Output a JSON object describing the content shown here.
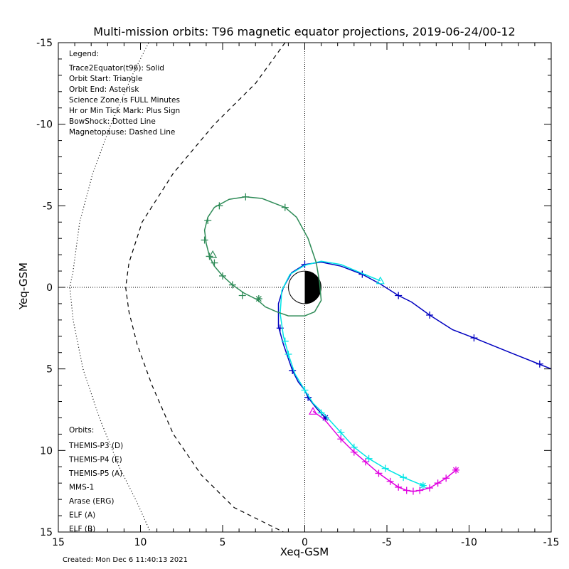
{
  "chart_data": {
    "type": "line",
    "title": "Multi-mission orbits: T96 magnetic equator projections, 2019-06-24/00-12",
    "xlabel": "Xeq-GSM",
    "ylabel": "Yeq-GSM",
    "xlim": [
      15,
      -15
    ],
    "ylim": [
      -15,
      15
    ],
    "x_ticks": [
      {
        "v": 15,
        "label": "15"
      },
      {
        "v": 10,
        "label": "10"
      },
      {
        "v": 5,
        "label": "5"
      },
      {
        "v": 0,
        "label": "0"
      },
      {
        "v": -5,
        "label": "-5"
      },
      {
        "v": -10,
        "label": "-10"
      },
      {
        "v": -15,
        "label": "-15"
      }
    ],
    "y_ticks": [
      {
        "v": -15,
        "label": "-15"
      },
      {
        "v": -10,
        "label": "-10"
      },
      {
        "v": -5,
        "label": "-5"
      },
      {
        "v": 0,
        "label": "0"
      },
      {
        "v": 5,
        "label": "5"
      },
      {
        "v": 10,
        "label": "10"
      },
      {
        "v": 15,
        "label": "15"
      }
    ],
    "created": "Created: Mon Dec  6 11:40:13 2021",
    "legend": {
      "header": "Legend:",
      "lines": [
        "Trace2Equator(t96): Solid",
        "Orbit Start: Triangle",
        "Orbit End: Asterisk",
        "Science Zone is FULL Minutes",
        "Hr or Min Tick Mark: Plus Sign",
        "BowShock: Dotted Line",
        "Magnetopause: Dashed Line"
      ]
    },
    "orbits_header": "Orbits:",
    "orbit_legend": [
      {
        "label": "THEMIS-P3 (D)",
        "color": "#00e5e5"
      },
      {
        "label": "THEMIS-P4 (E)",
        "color": "#0000c0"
      },
      {
        "label": "THEMIS-P5 (A)",
        "color": "#e000e0"
      },
      {
        "label": "MMS-1",
        "color": "#000000"
      },
      {
        "label": "Arase (ERG)",
        "color": "#2e8b57"
      },
      {
        "label": "ELF (A)",
        "color": "#3c78dc"
      },
      {
        "label": "ELF (B)",
        "color": "#dc1e1e"
      }
    ],
    "boundaries": {
      "bowshock": [
        [
          9.2,
          -15.6
        ],
        [
          10.5,
          -13
        ],
        [
          11.8,
          -10
        ],
        [
          12.9,
          -7
        ],
        [
          13.7,
          -4
        ],
        [
          14.1,
          -1
        ],
        [
          14.3,
          0
        ],
        [
          14.1,
          2
        ],
        [
          13.5,
          5
        ],
        [
          12.5,
          8
        ],
        [
          11.3,
          11
        ],
        [
          10.3,
          13
        ],
        [
          9.4,
          15
        ]
      ],
      "magnetopause": [
        [
          1.2,
          -15
        ],
        [
          3.0,
          -12.5
        ],
        [
          5.5,
          -10
        ],
        [
          8.0,
          -7
        ],
        [
          9.9,
          -4
        ],
        [
          10.7,
          -1.5
        ],
        [
          10.9,
          0
        ],
        [
          10.7,
          1.5
        ],
        [
          10.2,
          3.5
        ],
        [
          9.3,
          6
        ],
        [
          8.0,
          9
        ],
        [
          6.3,
          11.5
        ],
        [
          4.3,
          13.5
        ],
        [
          1.3,
          15
        ]
      ]
    },
    "series": [
      {
        "name": "THEMIS-P4 (E)",
        "color": "#0000c0",
        "points": [
          [
            -15.0,
            5.0
          ],
          [
            -14.0,
            4.6
          ],
          [
            -12.5,
            4.0
          ],
          [
            -10.3,
            3.1
          ],
          [
            -9.0,
            2.6
          ],
          [
            -7.6,
            1.7
          ],
          [
            -6.5,
            0.9
          ],
          [
            -5.7,
            0.5
          ],
          [
            -4.6,
            -0.2
          ],
          [
            -3.5,
            -0.8
          ],
          [
            -2.2,
            -1.3
          ],
          [
            -1.0,
            -1.55
          ],
          [
            0.0,
            -1.4
          ],
          [
            0.8,
            -0.9
          ],
          [
            1.3,
            0.0
          ],
          [
            1.6,
            1.0
          ],
          [
            1.6,
            2.4
          ],
          [
            1.3,
            3.5
          ],
          [
            0.75,
            5.1
          ],
          [
            0.4,
            5.8
          ],
          [
            0.0,
            6.3
          ],
          [
            -0.2,
            6.75
          ],
          [
            -0.7,
            7.4
          ],
          [
            -1.25,
            8.0
          ]
        ],
        "ticks": [
          [
            -14.3,
            4.7
          ],
          [
            -10.3,
            3.1
          ],
          [
            -7.6,
            1.7
          ],
          [
            -5.7,
            0.5
          ],
          [
            -3.5,
            -0.8
          ],
          [
            0.0,
            -1.4
          ],
          [
            1.5,
            2.5
          ],
          [
            0.75,
            5.1
          ],
          [
            -0.2,
            6.75
          ]
        ],
        "start": null,
        "end": [
          -1.25,
          8.0
        ]
      },
      {
        "name": "THEMIS-P3 (D)",
        "color": "#00e5e5",
        "points": [
          [
            -4.6,
            -0.4
          ],
          [
            -3.5,
            -0.85
          ],
          [
            -2.2,
            -1.4
          ],
          [
            -1.0,
            -1.6
          ],
          [
            0.0,
            -1.35
          ],
          [
            0.9,
            -0.8
          ],
          [
            1.4,
            0.2
          ],
          [
            1.5,
            1.6
          ],
          [
            1.3,
            3.0
          ],
          [
            1.0,
            4.1
          ],
          [
            0.6,
            5.3
          ],
          [
            0.0,
            6.3
          ],
          [
            -0.5,
            7.1
          ],
          [
            -1.2,
            7.8
          ],
          [
            -2.2,
            8.9
          ],
          [
            -3.0,
            9.8
          ],
          [
            -3.9,
            10.5
          ],
          [
            -4.9,
            11.1
          ],
          [
            -6.0,
            11.65
          ],
          [
            -7.2,
            12.15
          ]
        ],
        "ticks": [
          [
            1.2,
            3.3
          ],
          [
            1.0,
            4.1
          ],
          [
            0.0,
            6.3
          ],
          [
            -1.0,
            7.7
          ],
          [
            -2.2,
            8.9
          ],
          [
            -3.0,
            9.8
          ],
          [
            -3.9,
            10.5
          ],
          [
            -4.9,
            11.1
          ],
          [
            -6.0,
            11.65
          ]
        ],
        "start": [
          -4.6,
          -0.4
        ],
        "end": [
          -7.2,
          12.15
        ]
      },
      {
        "name": "THEMIS-P5 (A)",
        "color": "#e000e0",
        "points": [
          [
            -0.5,
            7.6
          ],
          [
            -1.2,
            8.1
          ],
          [
            -2.2,
            9.3
          ],
          [
            -3.0,
            10.1
          ],
          [
            -3.7,
            10.7
          ],
          [
            -4.5,
            11.4
          ],
          [
            -5.2,
            11.9
          ],
          [
            -5.7,
            12.25
          ],
          [
            -6.2,
            12.45
          ],
          [
            -6.6,
            12.5
          ],
          [
            -7.0,
            12.45
          ],
          [
            -7.6,
            12.3
          ],
          [
            -8.1,
            12.0
          ],
          [
            -8.6,
            11.7
          ],
          [
            -9.2,
            11.2
          ]
        ],
        "ticks": [
          [
            -2.2,
            9.3
          ],
          [
            -3.0,
            10.1
          ],
          [
            -3.7,
            10.7
          ],
          [
            -4.5,
            11.4
          ],
          [
            -5.2,
            11.9
          ],
          [
            -5.7,
            12.25
          ],
          [
            -6.2,
            12.45
          ],
          [
            -6.6,
            12.5
          ],
          [
            -7.0,
            12.45
          ],
          [
            -7.6,
            12.3
          ],
          [
            -8.1,
            12.0
          ],
          [
            -8.6,
            11.7
          ]
        ],
        "start": [
          -0.5,
          7.6
        ],
        "end": [
          -9.2,
          11.2
        ]
      },
      {
        "name": "Arase (ERG)",
        "color": "#2e8b57",
        "points": [
          [
            5.8,
            -1.9
          ],
          [
            6.0,
            -2.7
          ],
          [
            6.1,
            -3.5
          ],
          [
            5.9,
            -4.3
          ],
          [
            5.5,
            -4.9
          ],
          [
            4.6,
            -5.4
          ],
          [
            3.6,
            -5.55
          ],
          [
            2.6,
            -5.45
          ],
          [
            1.2,
            -4.9
          ],
          [
            0.5,
            -4.3
          ],
          [
            -0.2,
            -3.0
          ],
          [
            -0.7,
            -1.5
          ],
          [
            -0.9,
            -0.3
          ],
          [
            -1.0,
            0.8
          ],
          [
            -0.6,
            1.5
          ],
          [
            0.0,
            1.75
          ],
          [
            1.0,
            1.75
          ],
          [
            1.7,
            1.5
          ],
          [
            2.4,
            1.2
          ],
          [
            2.9,
            0.75
          ],
          [
            3.7,
            0.35
          ],
          [
            4.4,
            -0.15
          ],
          [
            5.0,
            -0.7
          ],
          [
            5.5,
            -1.3
          ],
          [
            5.8,
            -1.9
          ]
        ],
        "ticks": [
          [
            5.8,
            -1.9
          ],
          [
            6.1,
            -2.9
          ],
          [
            5.9,
            -4.1
          ],
          [
            5.2,
            -5.0
          ],
          [
            3.6,
            -5.55
          ],
          [
            1.2,
            -4.9
          ],
          [
            3.8,
            0.5
          ],
          [
            4.4,
            -0.15
          ],
          [
            5.0,
            -0.7
          ],
          [
            5.5,
            -1.5
          ]
        ],
        "start": [
          5.6,
          -2.0
        ],
        "end": [
          2.8,
          0.7
        ]
      }
    ]
  }
}
